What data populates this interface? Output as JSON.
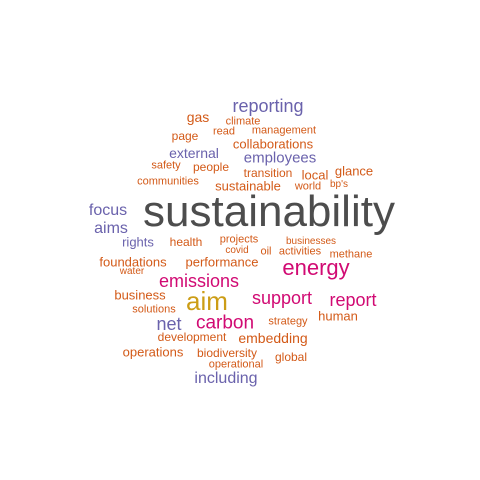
{
  "palette": {
    "gray": "#4d4d4d",
    "purple": "#6a62ac",
    "orange": "#d35a18",
    "magenta": "#d10a73",
    "gold": "#cc9d16"
  },
  "words": [
    {
      "text": "sustainability",
      "color": "gray"
    },
    {
      "text": "reporting",
      "color": "purple"
    },
    {
      "text": "gas",
      "color": "orange"
    },
    {
      "text": "climate",
      "color": "orange"
    },
    {
      "text": "page",
      "color": "orange"
    },
    {
      "text": "read",
      "color": "orange"
    },
    {
      "text": "management",
      "color": "orange"
    },
    {
      "text": "collaborations",
      "color": "orange"
    },
    {
      "text": "external",
      "color": "purple"
    },
    {
      "text": "employees",
      "color": "purple"
    },
    {
      "text": "safety",
      "color": "orange"
    },
    {
      "text": "people",
      "color": "orange"
    },
    {
      "text": "transition",
      "color": "orange"
    },
    {
      "text": "local",
      "color": "orange"
    },
    {
      "text": "glance",
      "color": "orange"
    },
    {
      "text": "communities",
      "color": "orange"
    },
    {
      "text": "sustainable",
      "color": "orange"
    },
    {
      "text": "world",
      "color": "orange"
    },
    {
      "text": "bp's",
      "color": "orange"
    },
    {
      "text": "focus",
      "color": "purple"
    },
    {
      "text": "aims",
      "color": "purple"
    },
    {
      "text": "rights",
      "color": "purple"
    },
    {
      "text": "health",
      "color": "orange"
    },
    {
      "text": "projects",
      "color": "orange"
    },
    {
      "text": "covid",
      "color": "orange"
    },
    {
      "text": "businesses",
      "color": "orange"
    },
    {
      "text": "oil",
      "color": "orange"
    },
    {
      "text": "activities",
      "color": "orange"
    },
    {
      "text": "methane",
      "color": "orange"
    },
    {
      "text": "foundations",
      "color": "orange"
    },
    {
      "text": "performance",
      "color": "orange"
    },
    {
      "text": "energy",
      "color": "magenta"
    },
    {
      "text": "water",
      "color": "orange"
    },
    {
      "text": "emissions",
      "color": "magenta"
    },
    {
      "text": "business",
      "color": "orange"
    },
    {
      "text": "aim",
      "color": "gold"
    },
    {
      "text": "support",
      "color": "magenta"
    },
    {
      "text": "report",
      "color": "magenta"
    },
    {
      "text": "solutions",
      "color": "orange"
    },
    {
      "text": "net",
      "color": "purple"
    },
    {
      "text": "carbon",
      "color": "magenta"
    },
    {
      "text": "strategy",
      "color": "orange"
    },
    {
      "text": "human",
      "color": "orange"
    },
    {
      "text": "development",
      "color": "orange"
    },
    {
      "text": "embedding",
      "color": "orange"
    },
    {
      "text": "operations",
      "color": "orange"
    },
    {
      "text": "biodiversity",
      "color": "orange"
    },
    {
      "text": "global",
      "color": "orange"
    },
    {
      "text": "operational",
      "color": "orange"
    },
    {
      "text": "including",
      "color": "purple"
    }
  ]
}
